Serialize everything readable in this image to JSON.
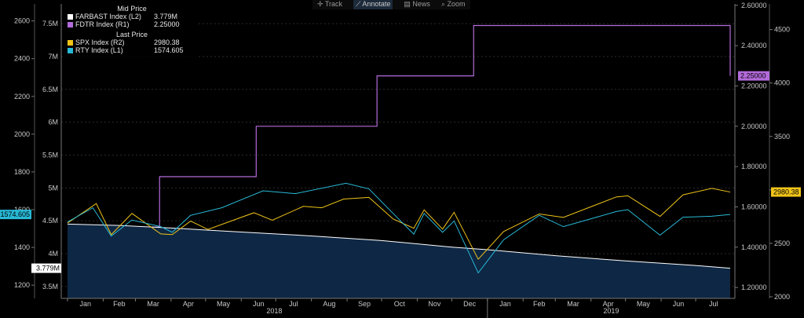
{
  "toolbar": {
    "track": "Track",
    "annotate": "Annotate",
    "news": "News",
    "zoom": "Zoom"
  },
  "legend": {
    "mid_header": "Mid Price",
    "last_header": "Last Price",
    "items": [
      {
        "name": "FARBAST Index  (L2)",
        "value": "3.779M",
        "color": "#ffffff"
      },
      {
        "name": "FDTR Index  (R1)",
        "value": "2.25000",
        "color": "#b36bdb"
      },
      {
        "name": "SPX Index  (R2)",
        "value": "2980.38",
        "color": "#f0c419"
      },
      {
        "name": "RTY Index  (L1)",
        "value": "1574.605",
        "color": "#28b9d6"
      }
    ]
  },
  "chart_data": {
    "type": "line",
    "x_range": [
      "2018-01-01",
      "2019-07-31"
    ],
    "month_ticks": [
      "Jan",
      "Feb",
      "Mar",
      "Apr",
      "May",
      "Jun",
      "Jul",
      "Aug",
      "Sep",
      "Oct",
      "Nov",
      "Dec",
      "Jan",
      "Feb",
      "Mar",
      "Apr",
      "May",
      "Jun",
      "Jul"
    ],
    "year_labels": [
      "2018",
      "2019"
    ],
    "axes": {
      "L1": {
        "ticks": [
          1200,
          1400,
          1600,
          1800,
          2000,
          2200,
          2400,
          2600
        ],
        "range": [
          1130,
          2690
        ]
      },
      "L2": {
        "ticks": [
          "3.5M",
          "4M",
          "4.5M",
          "5M",
          "5.5M",
          "6M",
          "6.5M",
          "7M",
          "7.5M"
        ],
        "range": [
          3.32,
          7.8
        ]
      },
      "R1": {
        "ticks": [
          "1.20000",
          "1.40000",
          "1.60000",
          "1.80000",
          "2.00000",
          "2.20000",
          "2.40000",
          "2.60000"
        ],
        "range": [
          1.146,
          2.607
        ]
      },
      "R2": {
        "ticks": [
          2000,
          2500,
          3000,
          3500,
          4000,
          4500
        ],
        "range": [
          1985,
          4740
        ]
      }
    },
    "last_value_labels": {
      "RTY": "1574.605",
      "FARBAST": "3.779M",
      "FDTR": "2.25000",
      "SPX": "2980.38"
    },
    "series": [
      {
        "name": "FDTR Index (R1)",
        "axis": "R1",
        "color": "#b36bdb",
        "kind": "step",
        "points": [
          [
            "2018-01-01",
            1.5
          ],
          [
            "2018-03-22",
            1.75
          ],
          [
            "2018-06-14",
            2.0
          ],
          [
            "2018-09-27",
            2.25
          ],
          [
            "2018-12-20",
            2.5
          ],
          [
            "2019-07-30",
            2.5
          ],
          [
            "2019-07-31",
            2.25
          ]
        ]
      },
      {
        "name": "FARBAST Index (L2)",
        "axis": "L2",
        "color": "#ffffff",
        "kind": "area",
        "fill": "#0e2744",
        "points": [
          [
            "2018-01-01",
            4.45
          ],
          [
            "2018-02-15",
            4.43
          ],
          [
            "2018-04-01",
            4.39
          ],
          [
            "2018-06-01",
            4.33
          ],
          [
            "2018-08-01",
            4.27
          ],
          [
            "2018-10-01",
            4.2
          ],
          [
            "2018-12-01",
            4.1
          ],
          [
            "2019-01-01",
            4.06
          ],
          [
            "2019-03-01",
            3.97
          ],
          [
            "2019-05-01",
            3.89
          ],
          [
            "2019-07-01",
            3.82
          ],
          [
            "2019-07-31",
            3.779
          ]
        ]
      },
      {
        "name": "SPX Index (R2)",
        "axis": "R2",
        "color": "#f0c419",
        "kind": "line",
        "points": [
          [
            "2018-01-01",
            2690
          ],
          [
            "2018-01-26",
            2872
          ],
          [
            "2018-02-08",
            2581
          ],
          [
            "2018-02-26",
            2780
          ],
          [
            "2018-03-23",
            2588
          ],
          [
            "2018-04-02",
            2582
          ],
          [
            "2018-04-18",
            2708
          ],
          [
            "2018-05-03",
            2630
          ],
          [
            "2018-06-12",
            2786
          ],
          [
            "2018-06-28",
            2716
          ],
          [
            "2018-07-25",
            2846
          ],
          [
            "2018-08-10",
            2833
          ],
          [
            "2018-08-29",
            2914
          ],
          [
            "2018-09-20",
            2930
          ],
          [
            "2018-10-11",
            2728
          ],
          [
            "2018-10-29",
            2641
          ],
          [
            "2018-11-07",
            2813
          ],
          [
            "2018-11-23",
            2633
          ],
          [
            "2018-12-03",
            2790
          ],
          [
            "2018-12-24",
            2351
          ],
          [
            "2019-01-15",
            2610
          ],
          [
            "2019-02-15",
            2775
          ],
          [
            "2019-03-08",
            2743
          ],
          [
            "2019-04-23",
            2934
          ],
          [
            "2019-05-03",
            2945
          ],
          [
            "2019-05-31",
            2752
          ],
          [
            "2019-06-20",
            2954
          ],
          [
            "2019-07-15",
            3014
          ],
          [
            "2019-07-31",
            2980
          ]
        ]
      },
      {
        "name": "RTY Index (L1)",
        "axis": "L1",
        "color": "#28b9d6",
        "kind": "line",
        "points": [
          [
            "2018-01-01",
            1535
          ],
          [
            "2018-01-23",
            1610
          ],
          [
            "2018-02-08",
            1460
          ],
          [
            "2018-02-26",
            1545
          ],
          [
            "2018-03-23",
            1510
          ],
          [
            "2018-04-02",
            1480
          ],
          [
            "2018-04-18",
            1570
          ],
          [
            "2018-05-15",
            1610
          ],
          [
            "2018-06-20",
            1700
          ],
          [
            "2018-07-18",
            1685
          ],
          [
            "2018-08-31",
            1740
          ],
          [
            "2018-09-20",
            1710
          ],
          [
            "2018-10-11",
            1580
          ],
          [
            "2018-10-29",
            1470
          ],
          [
            "2018-11-07",
            1580
          ],
          [
            "2018-11-23",
            1480
          ],
          [
            "2018-12-03",
            1540
          ],
          [
            "2018-12-24",
            1265
          ],
          [
            "2019-01-15",
            1440
          ],
          [
            "2019-02-15",
            1570
          ],
          [
            "2019-03-08",
            1510
          ],
          [
            "2019-04-23",
            1590
          ],
          [
            "2019-05-03",
            1600
          ],
          [
            "2019-05-31",
            1465
          ],
          [
            "2019-06-20",
            1560
          ],
          [
            "2019-07-15",
            1565
          ],
          [
            "2019-07-31",
            1574.6
          ]
        ]
      }
    ]
  }
}
